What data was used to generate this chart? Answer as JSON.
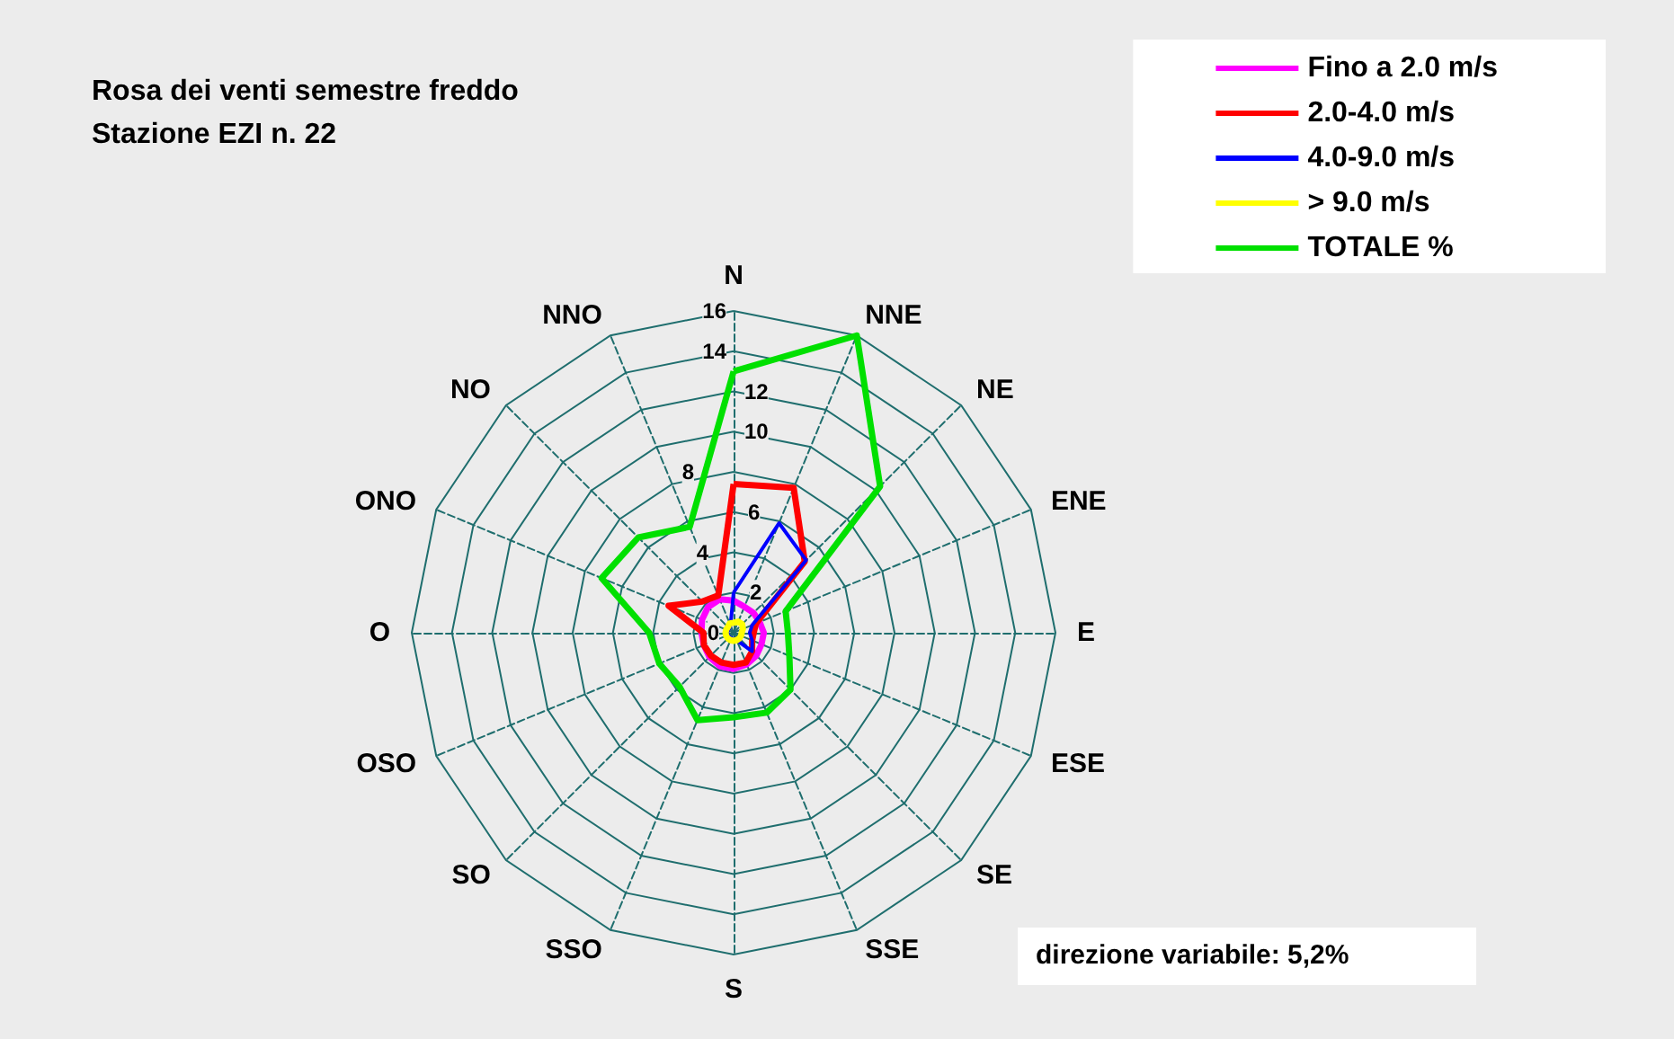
{
  "chart_data": {
    "type": "radar",
    "title": "Rosa dei venti semestre freddo",
    "subtitle": "Stazione EZI n. 22",
    "categories": [
      "N",
      "NNE",
      "NE",
      "ENE",
      "E",
      "ESE",
      "SE",
      "SSE",
      "S",
      "SSO",
      "SO",
      "OSO",
      "O",
      "ONO",
      "NO",
      "NNO"
    ],
    "series": [
      {
        "name": "Fino a 2.0 m/s",
        "color": "#ff00ff",
        "values": [
          1.6,
          1.4,
          1.4,
          1.4,
          1.5,
          1.5,
          1.6,
          1.7,
          1.8,
          1.8,
          1.7,
          1.6,
          1.6,
          1.7,
          1.8,
          1.8
        ]
      },
      {
        "name": "2.0-4.0 m/s",
        "color": "#ff0000",
        "values": [
          7.4,
          7.8,
          5,
          1.2,
          1,
          1,
          1.3,
          1.6,
          1.6,
          1.6,
          1.6,
          1.6,
          1.5,
          3.5,
          2.2,
          2
        ]
      },
      {
        "name": "4.0-9.0 m/s",
        "color": "#0000ff",
        "values": [
          2,
          5.9,
          5.1,
          1,
          0.8,
          1,
          1.3,
          0.4,
          0.3,
          0.3,
          0.3,
          0.3,
          0.3,
          0.3,
          0.3,
          0.4
        ]
      },
      {
        "name": "> 9.0 m/s",
        "color": "#ffff00",
        "values": [
          0.5,
          0.6,
          0.6,
          0.5,
          0.4,
          0.4,
          0.4,
          0.4,
          0.4,
          0.4,
          0.4,
          0.4,
          0.4,
          0.4,
          0.4,
          0.5
        ]
      },
      {
        "name": "TOTALE %",
        "color": "#00e000",
        "values": [
          13,
          16,
          10.3,
          2.8,
          2.7,
          3,
          4,
          4.3,
          4.2,
          4.7,
          3.8,
          4,
          4.2,
          7.1,
          6.7,
          5.7
        ]
      }
    ],
    "ylim": [
      0,
      16
    ],
    "yticks": [
      0,
      2,
      4,
      6,
      8,
      10,
      12,
      14,
      16
    ],
    "grid": true,
    "legend": "top right",
    "marker": "none",
    "line_style": "solid",
    "annotations": [
      "direzione variabile: 5,2%"
    ]
  }
}
